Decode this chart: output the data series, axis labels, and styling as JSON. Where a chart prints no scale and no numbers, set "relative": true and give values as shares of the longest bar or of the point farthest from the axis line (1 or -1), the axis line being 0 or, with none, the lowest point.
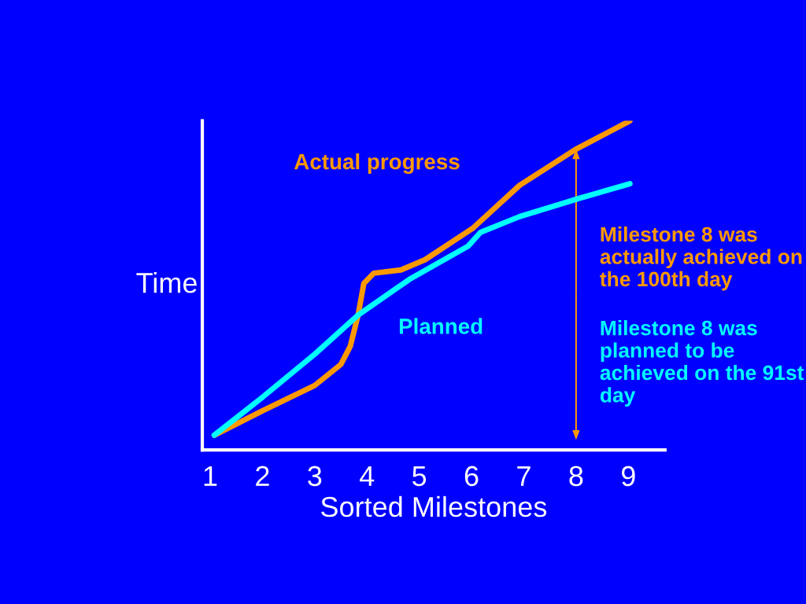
{
  "chart_data": {
    "type": "line",
    "relative": true,
    "xlabel": "Sorted Milestones",
    "ylabel": "Time",
    "xlim": [
      0.85,
      9.7
    ],
    "xticks": [
      1,
      2,
      3,
      4,
      5,
      6,
      7,
      8,
      9
    ],
    "grid": false,
    "marker": "none",
    "line_style": "solid",
    "series": [
      {
        "name": "Actual progress",
        "color": "#ff9900",
        "x": [
          1.08,
          2,
          3,
          3.5,
          3.68,
          3.83,
          3.94,
          4.13,
          4.65,
          5.11,
          6.02,
          6.92,
          7.98,
          9.03
        ],
        "values": [
          0.045,
          0.119,
          0.196,
          0.26,
          0.315,
          0.41,
          0.506,
          0.537,
          0.547,
          0.578,
          0.673,
          0.804,
          0.912,
          1.0
        ]
      },
      {
        "name": "Planned",
        "color": "#00ffff",
        "x": [
          1.08,
          2,
          3,
          3.83,
          4.81,
          5.94,
          6.17,
          6.92,
          8.05,
          9.03
        ],
        "values": [
          0.045,
          0.16,
          0.291,
          0.41,
          0.518,
          0.62,
          0.661,
          0.709,
          0.764,
          0.809
        ]
      }
    ],
    "annotations": [
      "Milestone 8 was actually achieved on the 100th day",
      "Milestone 8 was planned to be achieved on the 91st day"
    ]
  }
}
